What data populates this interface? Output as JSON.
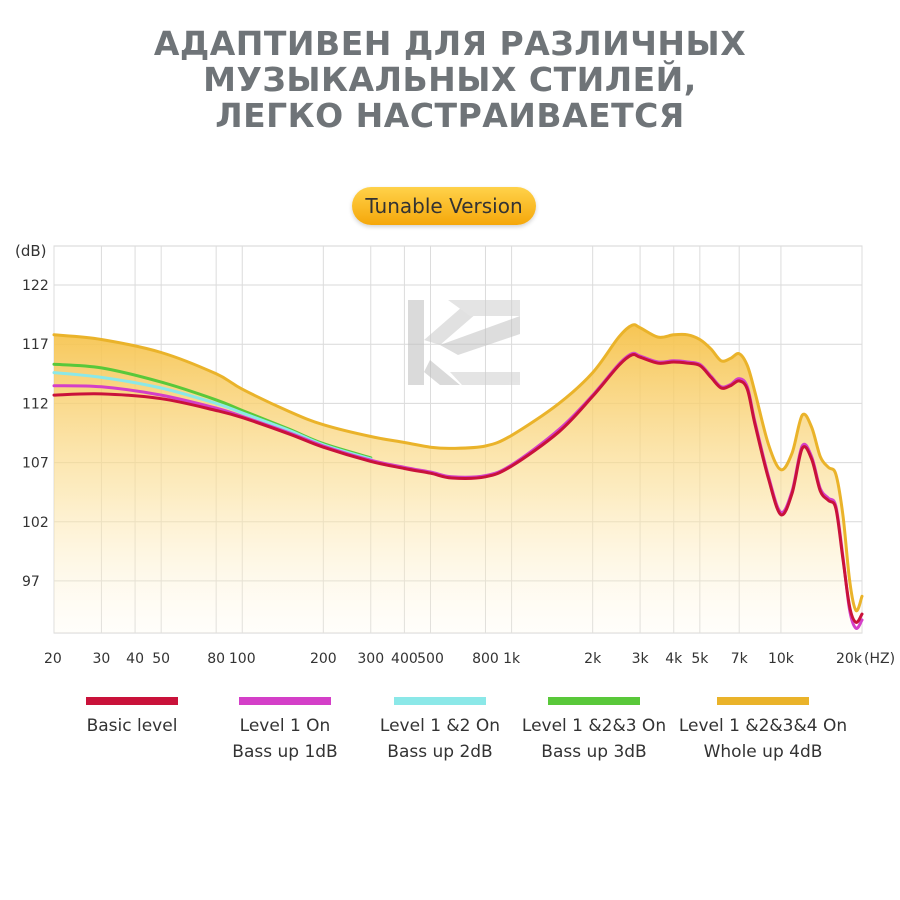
{
  "headline": {
    "line1": "АДАПТИВЕН ДЛЯ РАЗЛИЧНЫХ",
    "line2": "МУЗЫКАЛЬНЫХ СТИЛЕЙ,",
    "line3": "ЛЕГКО НАСТРАИВАЕТСЯ"
  },
  "badge": {
    "label": "Tunable Version",
    "color_from": "#ffd24a",
    "color_to": "#f5a70a"
  },
  "logo": {
    "icon": "kz-logo-icon",
    "text": "KZ"
  },
  "chart_data": {
    "type": "line",
    "title": "Tunable Version",
    "ylabel": "(dB)",
    "xlabel": "(HZ)",
    "xscale": "log",
    "xlim": [
      20,
      20000
    ],
    "ylim": [
      92.6,
      125.3
    ],
    "grid": true,
    "legend_position": "bottom",
    "yticks": [
      97,
      102,
      107,
      112,
      117,
      122
    ],
    "xticks": [
      {
        "value": 20,
        "label": "20"
      },
      {
        "value": 30,
        "label": "30"
      },
      {
        "value": 40,
        "label": "40"
      },
      {
        "value": 50,
        "label": "50"
      },
      {
        "value": 80,
        "label": "80"
      },
      {
        "value": 100,
        "label": "100"
      },
      {
        "value": 200,
        "label": "200"
      },
      {
        "value": 300,
        "label": "300"
      },
      {
        "value": 400,
        "label": "400"
      },
      {
        "value": 500,
        "label": "500"
      },
      {
        "value": 800,
        "label": "800"
      },
      {
        "value": 1000,
        "label": "1k"
      },
      {
        "value": 2000,
        "label": "2k"
      },
      {
        "value": 3000,
        "label": "3k"
      },
      {
        "value": 4000,
        "label": "4k"
      },
      {
        "value": 5000,
        "label": "5k"
      },
      {
        "value": 7000,
        "label": "7k"
      },
      {
        "value": 10000,
        "label": "10k"
      },
      {
        "value": 20000,
        "label": "20k"
      }
    ],
    "series": [
      {
        "name": "Level 1 &2&3&4 On",
        "name_line2": "Whole up 4dB",
        "color": "#eab32a",
        "fill": true,
        "points": [
          [
            20,
            117.8
          ],
          [
            30,
            117.4
          ],
          [
            50,
            116.3
          ],
          [
            80,
            114.5
          ],
          [
            100,
            113.2
          ],
          [
            150,
            111.3
          ],
          [
            200,
            110.2
          ],
          [
            300,
            109.2
          ],
          [
            400,
            108.7
          ],
          [
            500,
            108.3
          ],
          [
            600,
            108.2
          ],
          [
            800,
            108.4
          ],
          [
            1000,
            109.3
          ],
          [
            1500,
            112.0
          ],
          [
            2000,
            114.6
          ],
          [
            2500,
            117.6
          ],
          [
            2800,
            118.6
          ],
          [
            3000,
            118.4
          ],
          [
            3500,
            117.6
          ],
          [
            4000,
            117.8
          ],
          [
            4500,
            117.8
          ],
          [
            5000,
            117.4
          ],
          [
            5500,
            116.6
          ],
          [
            6000,
            115.6
          ],
          [
            6500,
            115.8
          ],
          [
            7000,
            116.2
          ],
          [
            7500,
            115.2
          ],
          [
            8000,
            113.0
          ],
          [
            9000,
            108.5
          ],
          [
            10000,
            106.4
          ],
          [
            11000,
            107.8
          ],
          [
            12000,
            111.0
          ],
          [
            13000,
            110.0
          ],
          [
            14000,
            107.5
          ],
          [
            15000,
            106.6
          ],
          [
            16000,
            106.0
          ],
          [
            17000,
            102.5
          ],
          [
            18000,
            97.0
          ],
          [
            19000,
            94.5
          ],
          [
            20000,
            95.7
          ]
        ]
      },
      {
        "name": "Level 1 &2&3 On",
        "name_line2": "Bass up 3dB",
        "color": "#59c83a",
        "fill": false,
        "points": [
          [
            20,
            115.3
          ],
          [
            30,
            115.0
          ],
          [
            50,
            113.8
          ],
          [
            80,
            112.3
          ],
          [
            100,
            111.4
          ],
          [
            150,
            109.8
          ],
          [
            200,
            108.6
          ],
          [
            300,
            107.4
          ]
        ]
      },
      {
        "name": "Level 1 &2 On",
        "name_line2": "Bass up 2dB",
        "color": "#8be8e8",
        "fill": false,
        "points": [
          [
            20,
            114.6
          ],
          [
            30,
            114.2
          ],
          [
            50,
            113.3
          ],
          [
            80,
            112.0
          ],
          [
            100,
            111.2
          ],
          [
            150,
            109.7
          ],
          [
            200,
            108.5
          ],
          [
            300,
            107.3
          ]
        ]
      },
      {
        "name": "Level 1 On",
        "name_line2": "Bass up 1dB",
        "color": "#d43fc8",
        "fill": false,
        "points": [
          [
            20,
            113.5
          ],
          [
            30,
            113.4
          ],
          [
            50,
            112.7
          ],
          [
            80,
            111.6
          ],
          [
            100,
            110.9
          ],
          [
            150,
            109.5
          ],
          [
            200,
            108.4
          ],
          [
            300,
            107.2
          ],
          [
            400,
            106.6
          ],
          [
            500,
            106.2
          ],
          [
            600,
            105.8
          ],
          [
            800,
            105.9
          ],
          [
            1000,
            106.8
          ],
          [
            1500,
            109.8
          ],
          [
            2000,
            112.7
          ],
          [
            2500,
            115.3
          ],
          [
            2800,
            116.2
          ],
          [
            3000,
            116.0
          ],
          [
            3500,
            115.5
          ],
          [
            4000,
            115.6
          ],
          [
            4500,
            115.5
          ],
          [
            5000,
            115.3
          ],
          [
            5500,
            114.3
          ],
          [
            6000,
            113.4
          ],
          [
            6500,
            113.6
          ],
          [
            7000,
            114.1
          ],
          [
            7500,
            113.4
          ],
          [
            8000,
            110.5
          ],
          [
            9000,
            105.8
          ],
          [
            10000,
            102.8
          ],
          [
            11000,
            104.6
          ],
          [
            12000,
            108.4
          ],
          [
            13000,
            107.5
          ],
          [
            14000,
            104.8
          ],
          [
            15000,
            104.0
          ],
          [
            16000,
            103.3
          ],
          [
            17000,
            99.0
          ],
          [
            18000,
            94.5
          ],
          [
            19000,
            93.0
          ],
          [
            20000,
            93.7
          ]
        ]
      },
      {
        "name": "Basic level",
        "name_line2": "",
        "color": "#c9123a",
        "fill": false,
        "points": [
          [
            20,
            112.7
          ],
          [
            30,
            112.8
          ],
          [
            50,
            112.4
          ],
          [
            80,
            111.4
          ],
          [
            100,
            110.8
          ],
          [
            150,
            109.4
          ],
          [
            200,
            108.3
          ],
          [
            300,
            107.1
          ],
          [
            400,
            106.5
          ],
          [
            500,
            106.1
          ],
          [
            600,
            105.7
          ],
          [
            800,
            105.8
          ],
          [
            1000,
            106.7
          ],
          [
            1500,
            109.6
          ],
          [
            2000,
            112.6
          ],
          [
            2500,
            115.2
          ],
          [
            2800,
            116.1
          ],
          [
            3000,
            115.9
          ],
          [
            3500,
            115.4
          ],
          [
            4000,
            115.5
          ],
          [
            4500,
            115.4
          ],
          [
            5000,
            115.2
          ],
          [
            5500,
            114.2
          ],
          [
            6000,
            113.3
          ],
          [
            6500,
            113.5
          ],
          [
            7000,
            113.9
          ],
          [
            7500,
            113.2
          ],
          [
            8000,
            110.3
          ],
          [
            9000,
            105.6
          ],
          [
            10000,
            102.6
          ],
          [
            11000,
            104.4
          ],
          [
            12000,
            108.2
          ],
          [
            13000,
            107.3
          ],
          [
            14000,
            104.6
          ],
          [
            15000,
            103.8
          ],
          [
            16000,
            103.1
          ],
          [
            17000,
            98.8
          ],
          [
            18000,
            94.8
          ],
          [
            19000,
            93.5
          ],
          [
            20000,
            94.2
          ]
        ]
      }
    ]
  }
}
